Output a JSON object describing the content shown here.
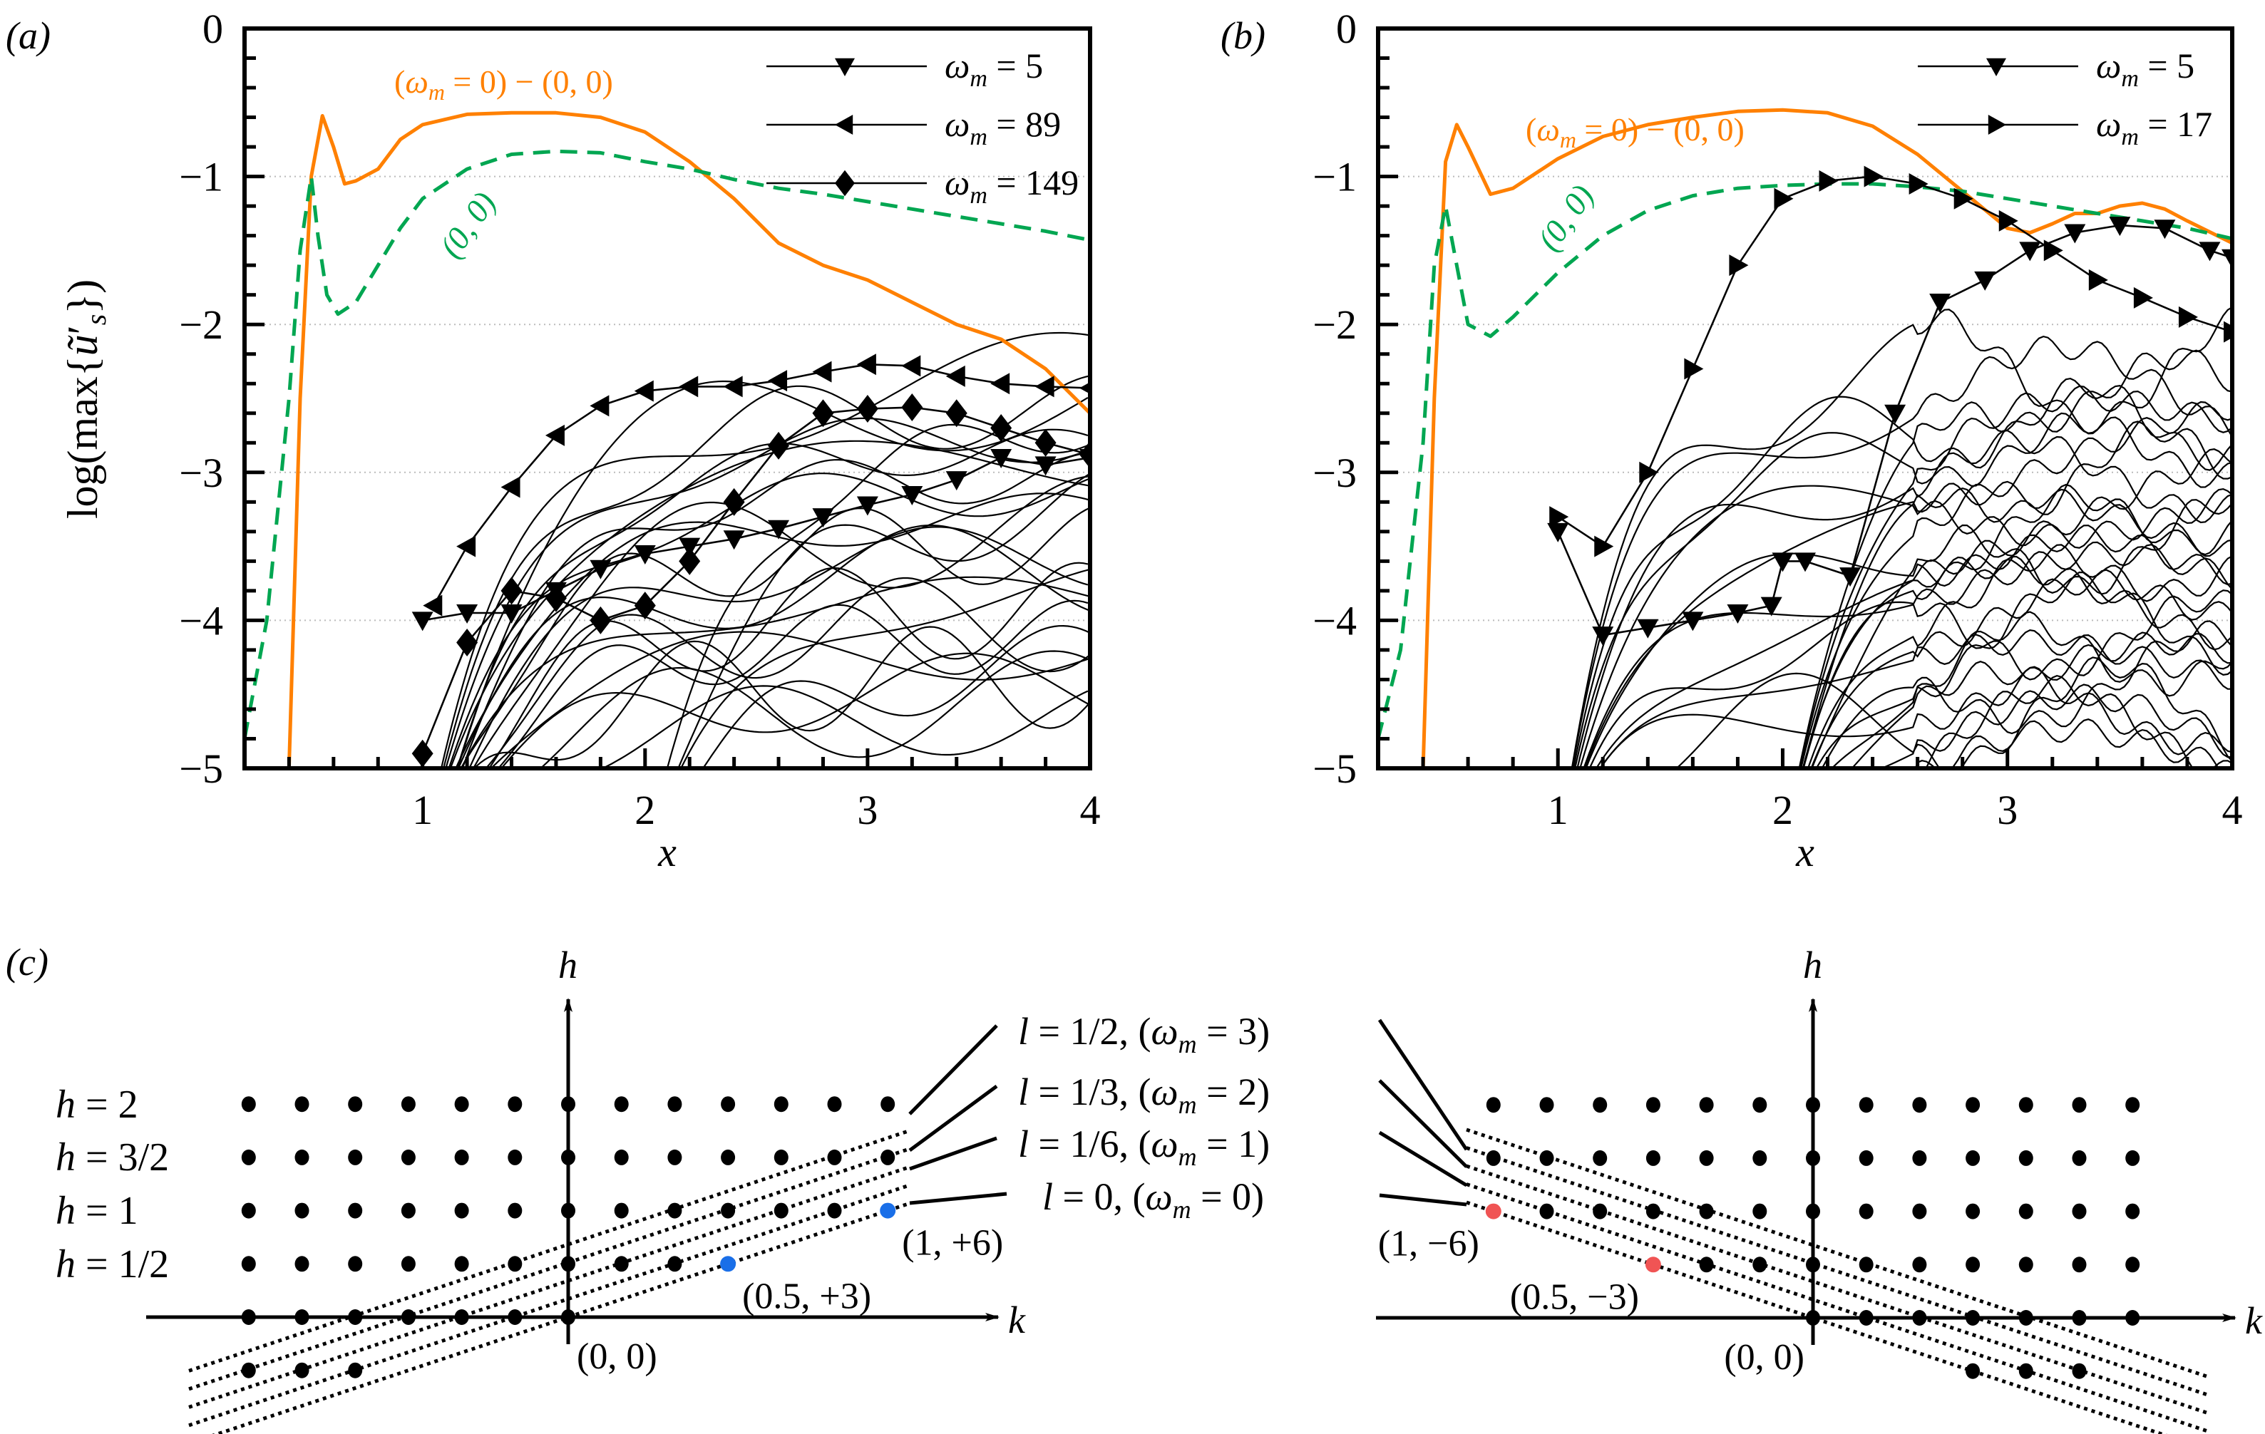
{
  "chart_data": [
    {
      "panel_label": "(a)",
      "type": "line",
      "xlabel": "x",
      "ylabel": "log(max{ũ′_s})",
      "xlim": [
        0.2,
        4
      ],
      "ylim": [
        -5,
        0
      ],
      "xticks": [
        "1",
        "2",
        "3",
        "4"
      ],
      "yticks": [
        "0",
        "−1",
        "−2",
        "−3",
        "−4",
        "−5"
      ],
      "grid": "horizontal dotted at y=-1,-2,-3,-4",
      "legend_position": "top-right",
      "legend": [
        {
          "label": "ω_m = 5",
          "marker": "triangle-down"
        },
        {
          "label": "ω_m = 89",
          "marker": "triangle-left"
        },
        {
          "label": "ω_m = 149",
          "marker": "diamond"
        }
      ],
      "annotations": [
        {
          "text": "(ω_m = 0) − (0, 0)",
          "color": "#ff8000"
        },
        {
          "text": "(0, 0)",
          "color": "#00a651"
        }
      ],
      "series": [
        {
          "name": "(ω_m = 0) − (0, 0)",
          "color": "#ff8000",
          "style": "solid",
          "x": [
            0.4,
            0.45,
            0.5,
            0.55,
            0.6,
            0.65,
            0.7,
            0.8,
            0.9,
            1.0,
            1.2,
            1.4,
            1.6,
            1.8,
            2.0,
            2.2,
            2.4,
            2.6,
            2.8,
            3.0,
            3.2,
            3.4,
            3.6,
            3.8,
            4.0
          ],
          "y": [
            -5.0,
            -2.5,
            -1.0,
            -0.59,
            -0.8,
            -1.05,
            -1.03,
            -0.95,
            -0.75,
            -0.65,
            -0.58,
            -0.57,
            -0.57,
            -0.6,
            -0.7,
            -0.9,
            -1.15,
            -1.45,
            -1.6,
            -1.7,
            -1.85,
            -2.0,
            -2.1,
            -2.3,
            -2.6
          ]
        },
        {
          "name": "(0, 0)",
          "color": "#00a651",
          "style": "dashed",
          "x": [
            0.2,
            0.3,
            0.4,
            0.45,
            0.5,
            0.53,
            0.57,
            0.62,
            0.7,
            0.8,
            0.9,
            1.0,
            1.2,
            1.4,
            1.6,
            1.8,
            2.0,
            2.2,
            2.4,
            2.6,
            2.8,
            3.0,
            3.2,
            3.4,
            3.6,
            3.8,
            4.0
          ],
          "y": [
            -4.8,
            -4.0,
            -2.5,
            -1.5,
            -1.0,
            -1.4,
            -1.8,
            -1.93,
            -1.85,
            -1.6,
            -1.35,
            -1.15,
            -0.95,
            -0.85,
            -0.83,
            -0.84,
            -0.9,
            -0.95,
            -1.02,
            -1.08,
            -1.12,
            -1.17,
            -1.22,
            -1.27,
            -1.32,
            -1.37,
            -1.43
          ]
        },
        {
          "name": "ω_m = 5",
          "marker": "triangle-down",
          "x": [
            1.0,
            1.2,
            1.4,
            1.6,
            1.8,
            2.0,
            2.2,
            2.4,
            2.6,
            2.8,
            3.0,
            3.2,
            3.4,
            3.6,
            3.8,
            4.0
          ],
          "y": [
            -4.0,
            -3.95,
            -3.95,
            -3.8,
            -3.65,
            -3.55,
            -3.5,
            -3.45,
            -3.38,
            -3.3,
            -3.22,
            -3.15,
            -3.05,
            -2.9,
            -2.95,
            -2.9
          ]
        },
        {
          "name": "ω_m = 89",
          "marker": "triangle-left",
          "x": [
            1.05,
            1.2,
            1.4,
            1.6,
            1.8,
            2.0,
            2.2,
            2.4,
            2.6,
            2.8,
            3.0,
            3.2,
            3.4,
            3.6,
            3.8,
            4.0
          ],
          "y": [
            -3.9,
            -3.5,
            -3.1,
            -2.75,
            -2.55,
            -2.45,
            -2.42,
            -2.42,
            -2.38,
            -2.32,
            -2.27,
            -2.28,
            -2.35,
            -2.4,
            -2.42,
            -2.43
          ]
        },
        {
          "name": "ω_m = 149",
          "marker": "diamond",
          "x": [
            1.0,
            1.2,
            1.4,
            1.6,
            1.8,
            2.0,
            2.2,
            2.4,
            2.6,
            2.8,
            3.0,
            3.2,
            3.4,
            3.6,
            3.8,
            4.0
          ],
          "y": [
            -4.9,
            -4.15,
            -3.8,
            -3.85,
            -4.0,
            -3.9,
            -3.6,
            -3.2,
            -2.82,
            -2.6,
            -2.57,
            -2.56,
            -2.6,
            -2.7,
            -2.8,
            -2.88
          ]
        }
      ]
    },
    {
      "panel_label": "(b)",
      "type": "line",
      "xlabel": "x",
      "xlim": [
        0.2,
        4
      ],
      "ylim": [
        -5,
        0
      ],
      "xticks": [
        "1",
        "2",
        "3",
        "4"
      ],
      "yticks": [
        "0",
        "−1",
        "−2",
        "−3",
        "−4",
        "−5"
      ],
      "grid": "horizontal dotted at y=-1,-2,-3,-4",
      "legend_position": "top-right",
      "legend": [
        {
          "label": "ω_m = 5",
          "marker": "triangle-down"
        },
        {
          "label": "ω_m = 17",
          "marker": "triangle-right"
        }
      ],
      "annotations": [
        {
          "text": "(ω_m = 0) − (0, 0)",
          "color": "#ff8000"
        },
        {
          "text": "(0, 0)",
          "color": "#00a651"
        }
      ],
      "series": [
        {
          "name": "(ω_m = 0) − (0, 0)",
          "color": "#ff8000",
          "style": "solid",
          "x": [
            0.4,
            0.45,
            0.5,
            0.55,
            0.6,
            0.7,
            0.8,
            1.0,
            1.2,
            1.4,
            1.6,
            1.8,
            2.0,
            2.2,
            2.4,
            2.6,
            2.8,
            3.0,
            3.1,
            3.2,
            3.3,
            3.4,
            3.5,
            3.6,
            3.7,
            3.8,
            4.0
          ],
          "y": [
            -5.0,
            -2.5,
            -0.9,
            -0.65,
            -0.8,
            -1.12,
            -1.08,
            -0.88,
            -0.73,
            -0.65,
            -0.6,
            -0.56,
            -0.55,
            -0.57,
            -0.66,
            -0.85,
            -1.1,
            -1.35,
            -1.38,
            -1.32,
            -1.25,
            -1.25,
            -1.2,
            -1.18,
            -1.22,
            -1.3,
            -1.45
          ]
        },
        {
          "name": "(0, 0)",
          "color": "#00a651",
          "style": "dashed",
          "x": [
            0.2,
            0.3,
            0.4,
            0.45,
            0.5,
            0.55,
            0.6,
            0.7,
            0.8,
            1.0,
            1.2,
            1.4,
            1.6,
            1.8,
            2.0,
            2.2,
            2.4,
            2.6,
            2.8,
            3.0,
            3.2,
            3.4,
            3.6,
            3.8,
            4.0
          ],
          "y": [
            -4.8,
            -4.2,
            -2.8,
            -1.6,
            -1.2,
            -1.6,
            -2.0,
            -2.08,
            -1.95,
            -1.65,
            -1.4,
            -1.23,
            -1.13,
            -1.08,
            -1.06,
            -1.05,
            -1.05,
            -1.07,
            -1.1,
            -1.15,
            -1.2,
            -1.25,
            -1.3,
            -1.35,
            -1.42
          ]
        },
        {
          "name": "ω_m = 5",
          "marker": "triangle-down",
          "x": [
            1.0,
            1.2,
            1.4,
            1.6,
            1.8,
            1.95,
            2.0,
            2.1,
            2.3,
            2.5,
            2.7,
            2.9,
            3.1,
            3.3,
            3.5,
            3.7,
            3.9,
            4.0
          ],
          "y": [
            -3.4,
            -4.1,
            -4.05,
            -4.0,
            -3.95,
            -3.9,
            -3.6,
            -3.6,
            -3.7,
            -2.6,
            -1.85,
            -1.7,
            -1.5,
            -1.38,
            -1.33,
            -1.35,
            -1.5,
            -1.55
          ]
        },
        {
          "name": "ω_m = 17",
          "marker": "triangle-right",
          "x": [
            1.0,
            1.2,
            1.4,
            1.6,
            1.8,
            2.0,
            2.2,
            2.4,
            2.6,
            2.8,
            3.0,
            3.2,
            3.4,
            3.6,
            3.8,
            4.0
          ],
          "y": [
            -3.3,
            -3.5,
            -3.0,
            -2.3,
            -1.6,
            -1.15,
            -1.03,
            -1.0,
            -1.05,
            -1.15,
            -1.3,
            -1.5,
            -1.7,
            -1.82,
            -1.95,
            -2.05
          ]
        }
      ]
    },
    {
      "panel_label": "(c)",
      "type": "scatter",
      "xlabel": "k",
      "ylabel": "h",
      "row_labels": [
        "h = 2",
        "h = 3/2",
        "h = 1",
        "h = 1/2"
      ],
      "origin_label": "(0, 0)",
      "line_labels": [
        "l = 1/2, (ω_m = 3)",
        "l = 1/3, (ω_m = 2)",
        "l = 1/6, (ω_m = 1)",
        "l = 0, (ω_m = 0)"
      ],
      "left_diagram": {
        "k_range": [
          -6,
          6
        ],
        "h_values": [
          0,
          0.5,
          1,
          1.5,
          2
        ],
        "highlight_points": [
          {
            "k": 3,
            "h": 0.5,
            "label": "(0.5, +3)",
            "color": "#1a6fe8"
          },
          {
            "k": 6,
            "h": 1,
            "label": "(1, +6)",
            "color": "#1a6fe8"
          }
        ]
      },
      "right_diagram": {
        "k_range": [
          -6,
          6
        ],
        "h_values": [
          0,
          0.5,
          1,
          1.5,
          2
        ],
        "highlight_points": [
          {
            "k": -6,
            "h": 1,
            "label": "(1, −6)",
            "color": "#f05454"
          },
          {
            "k": -3,
            "h": 0.5,
            "label": "(0.5, −3)",
            "color": "#f05454"
          }
        ]
      }
    }
  ],
  "labels": {
    "panel_a": "(a)",
    "panel_b": "(b)",
    "panel_c": "(c)",
    "ylabel_log": "log",
    "ylabel_max": "(max{",
    "ylabel_u": "ũ",
    "ylabel_prime": "′",
    "ylabel_s": "s",
    "ylabel_close": "})",
    "x_axis": "x",
    "k_axis": "k",
    "h_axis": "h",
    "omega": "ω",
    "m": "m",
    "orange_label_tail": " = 0) − (0, 0)",
    "orange_label_open": "(",
    "green_label": "(0, 0)",
    "leg_a": [
      " = 5",
      " = 89",
      " = 149"
    ],
    "leg_b": [
      " = 5",
      " = 17"
    ]
  },
  "colors": {
    "orange": "#ff8000",
    "green": "#00a651",
    "blue": "#1a6fe8",
    "red": "#f05454"
  }
}
